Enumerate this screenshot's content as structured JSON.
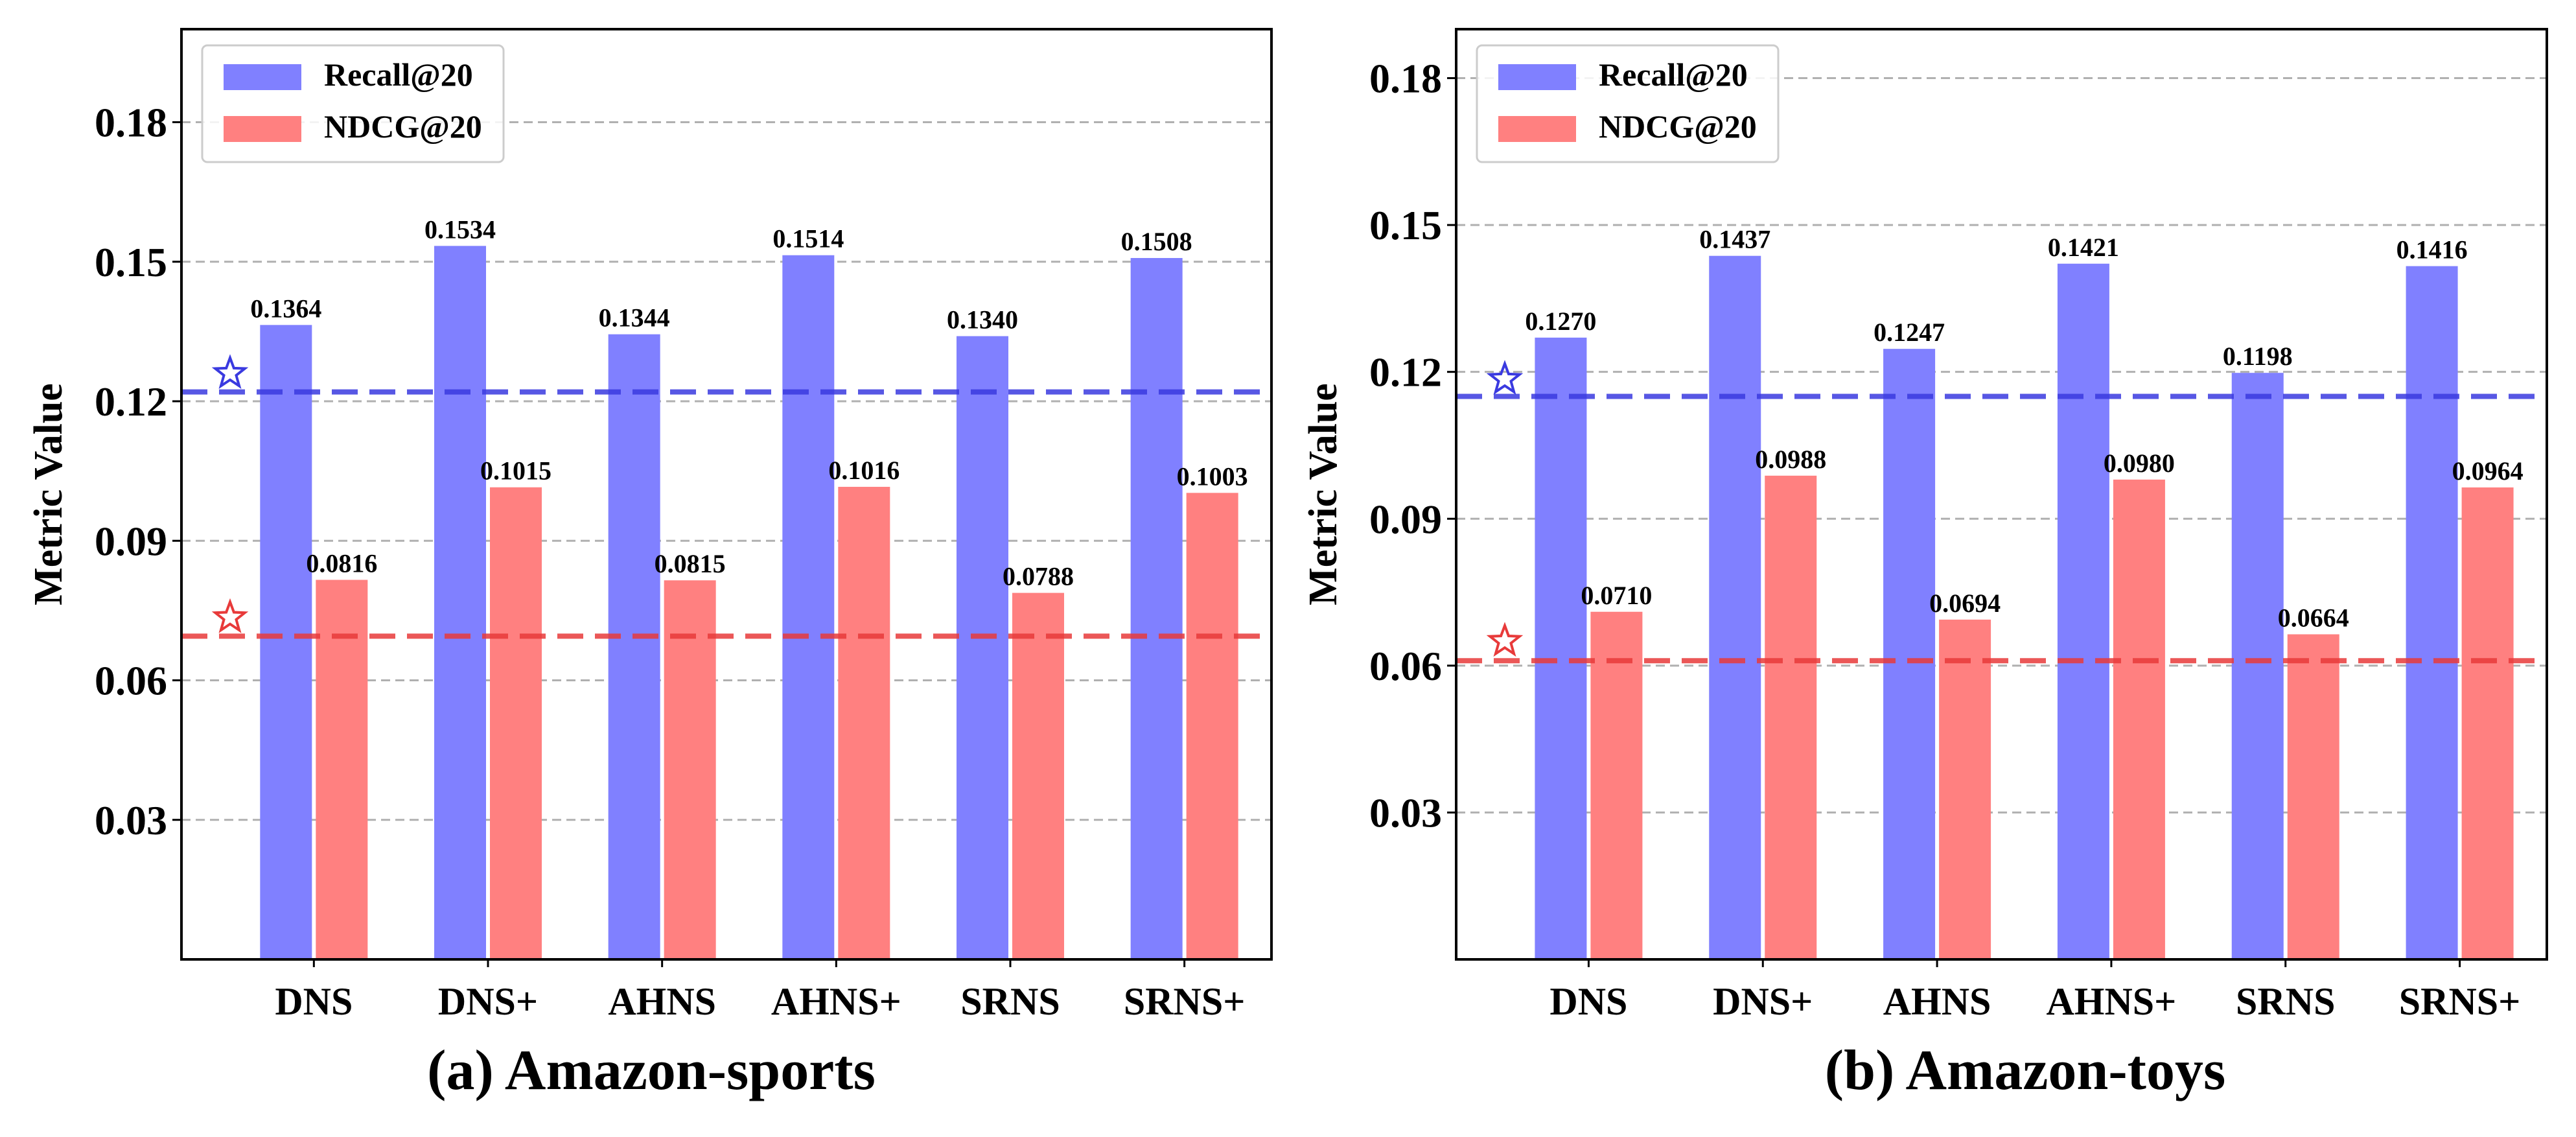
{
  "chart_data": [
    {
      "type": "bar",
      "title": "(a) Amazon-sports",
      "xlabel": "",
      "ylabel": "Metric Value",
      "ylim": [
        0,
        0.2
      ],
      "yticks": [
        "0.03",
        "0.06",
        "0.09",
        "0.12",
        "0.15",
        "0.18"
      ],
      "grid": "horizontal dashed",
      "legend_position": "top-left",
      "categories": [
        "DNS",
        "DNS+",
        "AHNS",
        "AHNS+",
        "SRNS",
        "SRNS+"
      ],
      "series": [
        {
          "name": "Recall@20",
          "color": "#8080ff",
          "values": [
            0.1364,
            0.1534,
            0.1344,
            0.1514,
            0.134,
            0.1508
          ],
          "labels": [
            "0.1364",
            "0.1534",
            "0.1344",
            "0.1514",
            "0.1340",
            "0.1508"
          ]
        },
        {
          "name": "NDCG@20",
          "color": "#ff8080",
          "values": [
            0.0816,
            0.1015,
            0.0815,
            0.1016,
            0.0788,
            0.1003
          ],
          "labels": [
            "0.0816",
            "0.1015",
            "0.0815",
            "0.1016",
            "0.0788",
            "0.1003"
          ]
        }
      ],
      "baselines": [
        {
          "series": "Recall@20",
          "value": 0.122,
          "color": "#3a3ae0",
          "star": 0.126
        },
        {
          "series": "NDCG@20",
          "value": 0.0695,
          "color": "#e83a3a",
          "star": 0.0735
        }
      ]
    },
    {
      "type": "bar",
      "title": "(b) Amazon-toys",
      "xlabel": "",
      "ylabel": "Metric Value",
      "ylim": [
        0,
        0.19
      ],
      "yticks": [
        "0.03",
        "0.06",
        "0.09",
        "0.12",
        "0.15",
        "0.18"
      ],
      "grid": "horizontal dashed",
      "legend_position": "top-left",
      "categories": [
        "DNS",
        "DNS+",
        "AHNS",
        "AHNS+",
        "SRNS",
        "SRNS+"
      ],
      "series": [
        {
          "name": "Recall@20",
          "color": "#8080ff",
          "values": [
            0.127,
            0.1437,
            0.1247,
            0.1421,
            0.1198,
            0.1416
          ],
          "labels": [
            "0.1270",
            "0.1437",
            "0.1247",
            "0.1421",
            "0.1198",
            "0.1416"
          ]
        },
        {
          "name": "NDCG@20",
          "color": "#ff8080",
          "values": [
            0.071,
            0.0988,
            0.0694,
            0.098,
            0.0664,
            0.0964
          ],
          "labels": [
            "0.0710",
            "0.0988",
            "0.0694",
            "0.0980",
            "0.0664",
            "0.0964"
          ]
        }
      ],
      "baselines": [
        {
          "series": "Recall@20",
          "value": 0.115,
          "color": "#3a3ae0",
          "star": 0.1185
        },
        {
          "series": "NDCG@20",
          "value": 0.061,
          "color": "#e83a3a",
          "star": 0.065
        }
      ]
    }
  ]
}
